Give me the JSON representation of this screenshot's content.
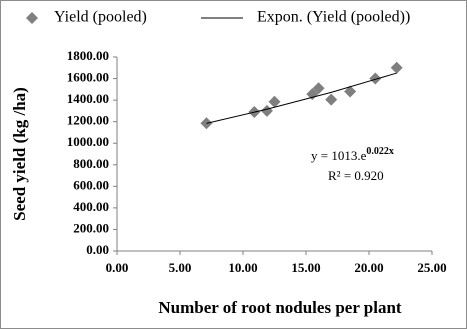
{
  "chart_data": {
    "type": "scatter",
    "x_label": "Number of root nodules per plant",
    "y_label": "Seed yield (kg /ha)",
    "xlim": [
      0,
      25
    ],
    "ylim": [
      0,
      1800
    ],
    "xticks": [
      {
        "value": 0,
        "label": "0.00"
      },
      {
        "value": 5,
        "label": "5.00"
      },
      {
        "value": 10,
        "label": "10.00"
      },
      {
        "value": 15,
        "label": "15.00"
      },
      {
        "value": 20,
        "label": "20.00"
      },
      {
        "value": 25,
        "label": "25.00"
      }
    ],
    "yticks": [
      {
        "value": 0,
        "label": "0.00"
      },
      {
        "value": 200,
        "label": "200.00"
      },
      {
        "value": 400,
        "label": "400.00"
      },
      {
        "value": 600,
        "label": "600.00"
      },
      {
        "value": 800,
        "label": "800.00"
      },
      {
        "value": 1000,
        "label": "1000.00"
      },
      {
        "value": 1200,
        "label": "1200.00"
      },
      {
        "value": 1400,
        "label": "1400.00"
      },
      {
        "value": 1600,
        "label": "1600.00"
      },
      {
        "value": 1800,
        "label": "1800.00"
      }
    ],
    "grid": false,
    "legend_position": "top",
    "series": [
      {
        "name": "Yield (pooled)",
        "color": "#7f7f7f",
        "marker": "diamond",
        "x": [
          7.1,
          10.9,
          11.9,
          12.5,
          15.5,
          16.0,
          17.0,
          18.5,
          20.5,
          22.2
        ],
        "values": [
          1185,
          1290,
          1300,
          1385,
          1455,
          1510,
          1405,
          1480,
          1600,
          1700
        ]
      },
      {
        "name": "Expon. (Yield (pooled))",
        "color": "#000000",
        "marker": "line",
        "x": [
          7.1,
          12,
          17,
          22.2
        ],
        "values": [
          1184,
          1319,
          1472,
          1651
        ]
      }
    ],
    "equation": {
      "base": "y = 1013.e",
      "exponent": "0.022x"
    },
    "r_squared": "R² = 0.920"
  }
}
